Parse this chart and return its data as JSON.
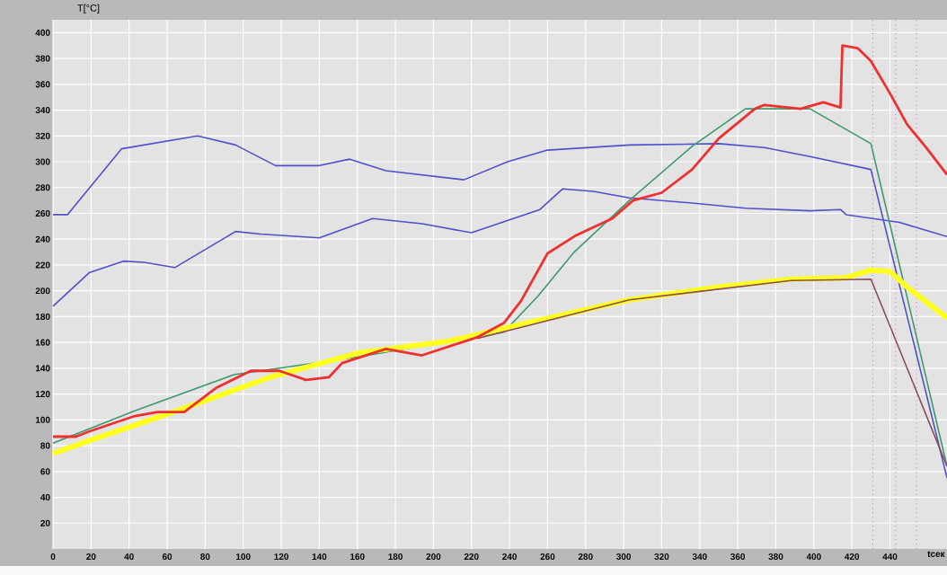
{
  "chart_data": {
    "type": "line",
    "xlabel": "tсек",
    "ylabel": "T[°C]",
    "xlim": [
      0,
      470
    ],
    "ylim": [
      0,
      410
    ],
    "xticks": [
      0,
      20,
      40,
      60,
      80,
      100,
      120,
      140,
      160,
      180,
      200,
      220,
      240,
      260,
      280,
      300,
      320,
      340,
      360,
      380,
      400,
      420,
      440
    ],
    "yticks": [
      20,
      40,
      60,
      80,
      100,
      120,
      140,
      160,
      180,
      200,
      220,
      240,
      260,
      280,
      300,
      320,
      340,
      360,
      380,
      400
    ],
    "grid": true,
    "marker": "none",
    "line_style": "solid",
    "series": [
      {
        "color": "#5050c8",
        "x": [
          0,
          7.6,
          36,
          76,
          96,
          117,
          140,
          156,
          175,
          216,
          239,
          260,
          303,
          350,
          374,
          398,
          430,
          470
        ],
        "values": [
          259,
          259,
          310,
          320,
          313,
          297,
          297,
          302,
          293,
          286,
          300,
          309,
          313,
          314,
          311,
          304,
          294,
          55
        ]
      },
      {
        "color": "#5050c8",
        "x": [
          0,
          19,
          37,
          48,
          64,
          96,
          109,
          140,
          168,
          194,
          220,
          256,
          268,
          284,
          303,
          336,
          364,
          398,
          414,
          417,
          445,
          470
        ],
        "values": [
          188,
          214,
          223,
          222,
          218,
          246,
          244,
          241,
          256,
          252,
          245,
          263,
          279,
          277,
          272,
          268,
          264,
          262,
          263,
          259,
          253,
          242
        ]
      },
      {
        "color": "#3c9a6a",
        "x": [
          0,
          43,
          95,
          161,
          237,
          255,
          274,
          303,
          336,
          364,
          398,
          430,
          470
        ],
        "values": [
          82,
          107,
          135,
          149,
          168,
          196,
          230,
          270,
          312,
          341,
          341,
          314,
          64
        ]
      },
      {
        "color": "#ffff20",
        "x": [
          0,
          19,
          67,
          114,
          161,
          208,
          255,
          303,
          350,
          388,
          416,
          430,
          440,
          449,
          470
        ],
        "values": [
          74,
          84,
          108,
          133,
          152,
          161,
          177,
          193,
          203,
          209,
          210,
          216,
          215,
          203,
          179
        ]
      },
      {
        "color": "#8b4a5a",
        "x": [
          223,
          303,
          388,
          430,
          470
        ],
        "values": [
          163,
          193,
          208,
          209,
          64
        ]
      },
      {
        "color": "#ee3030",
        "x": [
          0,
          12,
          19,
          43,
          55,
          69,
          86,
          104,
          119,
          133,
          145,
          152,
          175,
          194,
          223,
          237,
          246,
          260,
          275,
          294,
          305,
          320,
          336,
          350,
          369,
          374,
          393,
          405,
          414,
          415,
          423,
          430,
          440,
          449,
          459,
          470
        ],
        "values": [
          87,
          87,
          91,
          103,
          106,
          106,
          125,
          138,
          138,
          131,
          133,
          144,
          155,
          150,
          164,
          175,
          192,
          229,
          243,
          256,
          270,
          276,
          294,
          318,
          341,
          344,
          341,
          346,
          342,
          390,
          388,
          378,
          353,
          329,
          311,
          290
        ]
      }
    ],
    "ref_lines": [
      {
        "axis": "x",
        "value": 431,
        "color": "#cc66dd",
        "line_style": "dotted"
      },
      {
        "axis": "x",
        "value": 443,
        "color": "#cc66dd",
        "line_style": "dotted"
      },
      {
        "axis": "x",
        "value": 454,
        "color": "#cc66dd",
        "line_style": "dotted"
      }
    ]
  }
}
